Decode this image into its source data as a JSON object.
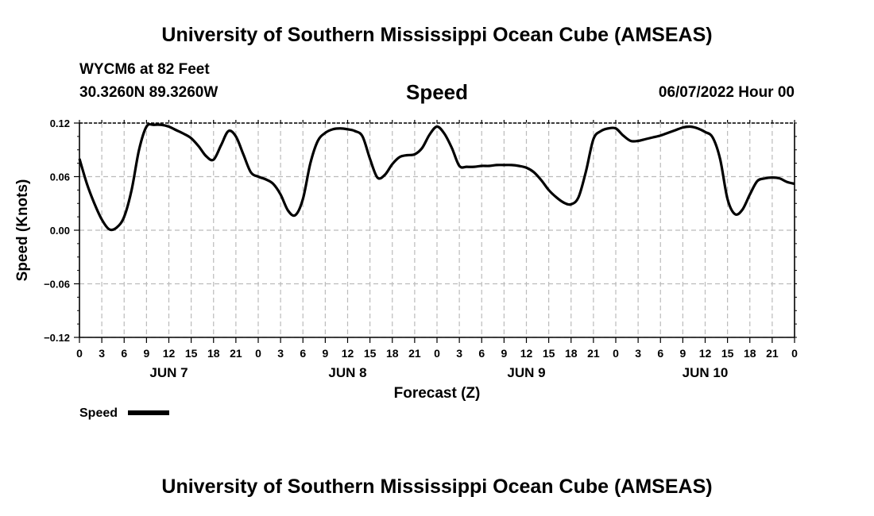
{
  "page_title": "University of Southern Mississippi Ocean Cube (AMSEAS)",
  "footer_title": "University of Southern Mississippi Ocean Cube (AMSEAS)",
  "station": "WYCM6 at 82 Feet",
  "coordinates": "30.3260N  89.3260W",
  "timestamp": "06/07/2022 Hour 00",
  "colors": {
    "line": "#000000",
    "grid": "#bbbbbb",
    "background": "#ffffff"
  },
  "chart_data": {
    "type": "line",
    "title": "Speed",
    "xlabel": "Forecast (Z)",
    "ylabel": "Speed (Knots)",
    "ylim": [
      -0.12,
      0.12
    ],
    "yticks": [
      "0.12",
      "0.06",
      "0.00",
      "−0.06",
      "−0.12"
    ],
    "y_tick_values": [
      0.12,
      0.06,
      0.0,
      -0.06,
      -0.12
    ],
    "xlim": [
      0,
      96
    ],
    "xticks": [
      "0",
      "3",
      "6",
      "9",
      "12",
      "15",
      "18",
      "21",
      "0",
      "3",
      "6",
      "9",
      "12",
      "15",
      "18",
      "21",
      "0",
      "3",
      "6",
      "9",
      "12",
      "15",
      "18",
      "21",
      "0",
      "3",
      "6",
      "9",
      "12",
      "15",
      "18",
      "21",
      "0"
    ],
    "day_labels": [
      {
        "label": "JUN 7",
        "hour": 12
      },
      {
        "label": "JUN 8",
        "hour": 36
      },
      {
        "label": "JUN 9",
        "hour": 60
      },
      {
        "label": "JUN 10",
        "hour": 84
      }
    ],
    "grid": true,
    "legend": "bottom-left",
    "series": [
      {
        "name": "Speed",
        "x": [
          0,
          1,
          2,
          3,
          4,
          5,
          6,
          7,
          8,
          9,
          10,
          11,
          12,
          13,
          14,
          15,
          16,
          17,
          18,
          19,
          20,
          21,
          22,
          23,
          24,
          25,
          26,
          27,
          28,
          29,
          30,
          31,
          32,
          33,
          34,
          35,
          36,
          37,
          38,
          39,
          40,
          41,
          42,
          43,
          44,
          45,
          46,
          47,
          48,
          49,
          50,
          51,
          52,
          53,
          54,
          55,
          56,
          57,
          58,
          59,
          60,
          61,
          62,
          63,
          64,
          65,
          66,
          67,
          68,
          69,
          70,
          71,
          72,
          73,
          74,
          75,
          76,
          77,
          78,
          79,
          80,
          81,
          82,
          83,
          84,
          85,
          86,
          87,
          88,
          89,
          90,
          91,
          92,
          93,
          94,
          95,
          96
        ],
        "values": [
          0.08,
          0.052,
          0.03,
          0.012,
          0.001,
          0.003,
          0.015,
          0.045,
          0.09,
          0.116,
          0.118,
          0.118,
          0.116,
          0.112,
          0.108,
          0.103,
          0.094,
          0.083,
          0.079,
          0.095,
          0.111,
          0.105,
          0.085,
          0.065,
          0.06,
          0.057,
          0.052,
          0.04,
          0.022,
          0.017,
          0.035,
          0.075,
          0.1,
          0.109,
          0.113,
          0.114,
          0.113,
          0.111,
          0.105,
          0.08,
          0.059,
          0.062,
          0.074,
          0.082,
          0.084,
          0.085,
          0.092,
          0.107,
          0.116,
          0.108,
          0.092,
          0.072,
          0.071,
          0.071,
          0.072,
          0.072,
          0.073,
          0.073,
          0.073,
          0.072,
          0.07,
          0.065,
          0.056,
          0.045,
          0.037,
          0.031,
          0.029,
          0.037,
          0.066,
          0.102,
          0.111,
          0.114,
          0.114,
          0.106,
          0.1,
          0.1,
          0.102,
          0.104,
          0.106,
          0.109,
          0.112,
          0.115,
          0.116,
          0.114,
          0.11,
          0.104,
          0.08,
          0.035,
          0.018,
          0.023,
          0.04,
          0.055,
          0.058,
          0.059,
          0.058,
          0.054,
          0.052
        ]
      }
    ]
  }
}
